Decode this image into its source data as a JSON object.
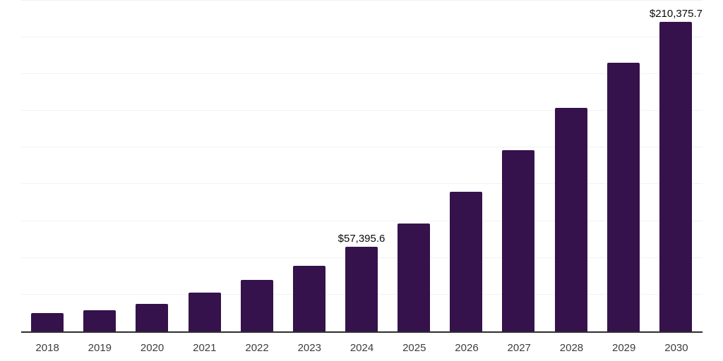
{
  "chart_data": {
    "type": "bar",
    "title": "",
    "xlabel": "",
    "ylabel": "",
    "categories": [
      "2018",
      "2019",
      "2020",
      "2021",
      "2022",
      "2023",
      "2024",
      "2025",
      "2026",
      "2027",
      "2028",
      "2029",
      "2030"
    ],
    "values": [
      12700,
      14600,
      18900,
      26400,
      35000,
      44800,
      57395.6,
      73100,
      94700,
      123000,
      151800,
      182400,
      210375.7
    ],
    "data_labels": [
      {
        "category": "2024",
        "text": "$57,395.6"
      },
      {
        "category": "2030",
        "text": "$210,375.7"
      }
    ],
    "ylim": [
      0,
      225250
    ],
    "gridline_interval": 25000,
    "grid": "horizontal-only",
    "legend": "none",
    "bar_color": "#35124b",
    "axis_line_color": "#2e2e2e",
    "gridline_color": "#f1f1f1",
    "tick_label_color": "#3d3d3d",
    "data_label_color": "#0a0a0a"
  }
}
